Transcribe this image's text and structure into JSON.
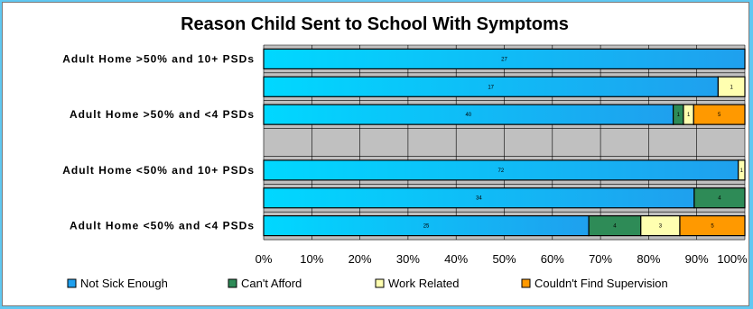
{
  "chart_data": {
    "type": "bar",
    "orientation": "horizontal",
    "stacked": true,
    "normalized_percent": true,
    "title": "Reason Child Sent to School With Symptoms",
    "categories": [
      "Adult Home >50% and 10+ PSDs",
      "",
      "Adult Home >50% and <4 PSDs",
      "",
      "Adult Home <50% and 10+ PSDs",
      "",
      "Adult Home <50% and <4 PSDs"
    ],
    "series": [
      {
        "name": "Not Sick Enough",
        "color": "#1fa0ee",
        "values": [
          27,
          17,
          40,
          0,
          72,
          34,
          25
        ]
      },
      {
        "name": "Can't Afford",
        "color": "#2e8b57",
        "values": [
          0,
          0,
          1,
          0,
          0,
          4,
          4
        ]
      },
      {
        "name": "Work Related",
        "color": "#ffffb0",
        "values": [
          0,
          1,
          1,
          0,
          1,
          0,
          3
        ]
      },
      {
        "name": "Couldn't Find Supervision",
        "color": "#ff9900",
        "values": [
          0,
          0,
          5,
          0,
          0,
          0,
          5
        ]
      }
    ],
    "xlim": [
      0,
      100
    ],
    "x_ticks": [
      "0%",
      "10%",
      "20%",
      "30%",
      "40%",
      "50%",
      "60%",
      "70%",
      "80%",
      "90%",
      "100%"
    ],
    "grid": true,
    "plot_background": "#c0c0c0",
    "legend_position": "bottom"
  }
}
